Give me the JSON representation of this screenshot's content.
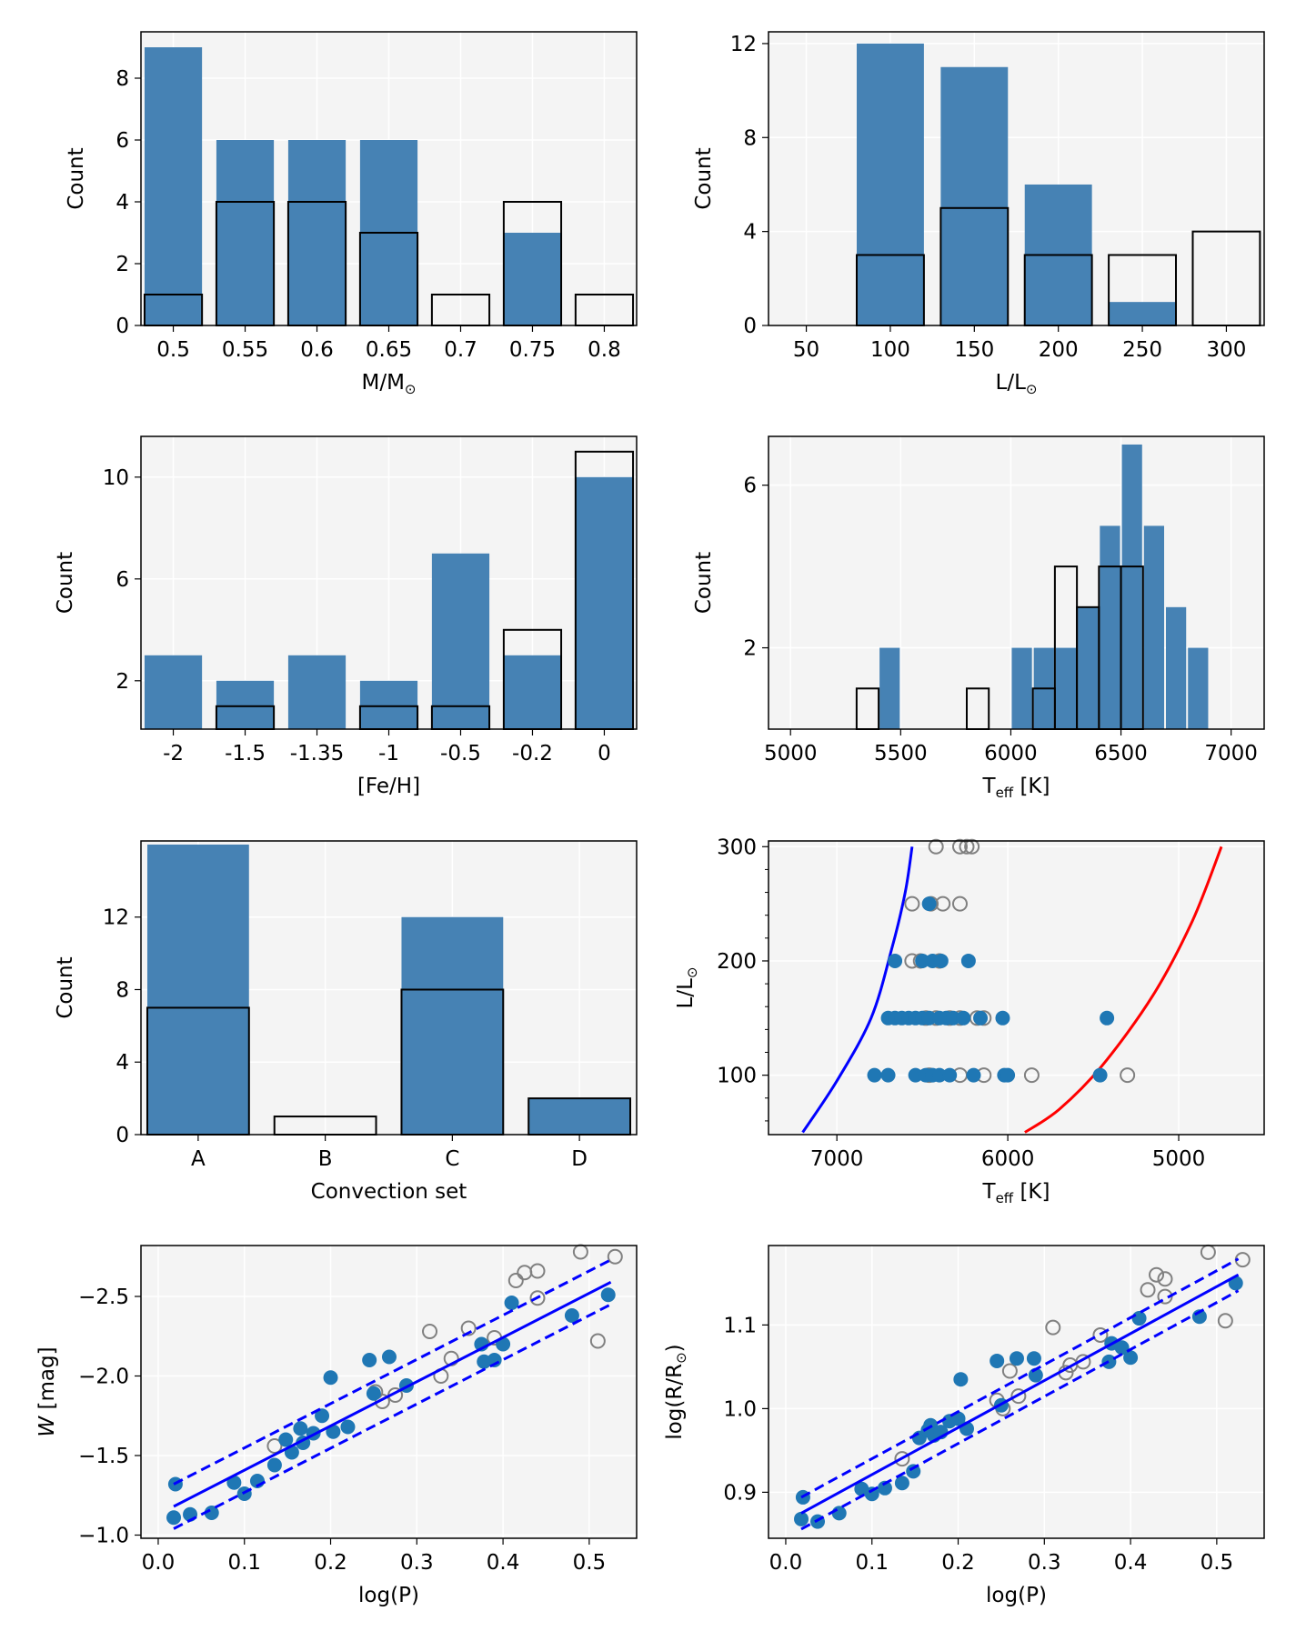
{
  "colors": {
    "bar_fill": "#4682b4",
    "dot_fill": "#1f77b4",
    "open_dot": "#808080",
    "plot_bg": "#f4f4f4",
    "blue_line": "#0000ff",
    "red_line": "#ff0000"
  },
  "chart_data": [
    {
      "id": "mass",
      "type": "bar",
      "xlabel": "M/M",
      "xlabel_sub": "⊙",
      "ylabel": "Count",
      "categories": [
        "0.5",
        "0.55",
        "0.6",
        "0.65",
        "0.7",
        "0.75",
        "0.8"
      ],
      "yticks": [
        "0",
        "2",
        "4",
        "6",
        "8"
      ],
      "ylim": [
        0,
        9.5
      ],
      "series": [
        {
          "name": "filled",
          "values": [
            9,
            6,
            6,
            6,
            0,
            3,
            0
          ]
        },
        {
          "name": "outline",
          "values": [
            1,
            4,
            4,
            3,
            1,
            4,
            1
          ]
        }
      ]
    },
    {
      "id": "lum",
      "type": "bar",
      "xlabel": "L/L",
      "xlabel_sub": "⊙",
      "ylabel": "Count",
      "categories": [
        "50",
        "100",
        "150",
        "200",
        "250",
        "300"
      ],
      "yticks": [
        "0",
        "4",
        "8",
        "12"
      ],
      "ylim": [
        0,
        12.5
      ],
      "series": [
        {
          "name": "filled",
          "values": [
            0,
            12,
            11,
            6,
            1,
            0
          ]
        },
        {
          "name": "outline",
          "values": [
            0,
            3,
            5,
            3,
            3,
            4
          ]
        }
      ]
    },
    {
      "id": "feh",
      "type": "bar",
      "xlabel": "[Fe/H]",
      "xlabel_sub": "",
      "ylabel": "Count",
      "categories": [
        "-2",
        "-1.5",
        "-1.35",
        "-1",
        "-0.5",
        "-0.2",
        "0"
      ],
      "yticks": [
        "2",
        "6",
        "10"
      ],
      "ylim": [
        0.1,
        11.6
      ],
      "series": [
        {
          "name": "filled",
          "values": [
            3,
            2,
            3,
            2,
            7,
            3,
            10
          ]
        },
        {
          "name": "outline",
          "values": [
            0,
            1,
            0,
            1,
            1,
            4,
            11
          ]
        }
      ]
    },
    {
      "id": "teff",
      "type": "bar",
      "xlabel": "T",
      "xlabel_sub": "eff",
      "xlabel_tail": " [K]",
      "ylabel": "Count",
      "xticks": [
        5000,
        5500,
        6000,
        6500,
        7000
      ],
      "xlim": [
        4900,
        7150
      ],
      "yticks": [
        2,
        6
      ],
      "ylim": [
        0,
        7.2
      ],
      "bin_width": 100,
      "series": [
        {
          "name": "filled",
          "bins": [
            [
              5400,
              2
            ],
            [
              6000,
              2
            ],
            [
              6100,
              2
            ],
            [
              6200,
              2
            ],
            [
              6300,
              3
            ],
            [
              6400,
              5
            ],
            [
              6500,
              7
            ],
            [
              6600,
              5
            ],
            [
              6700,
              3
            ],
            [
              6800,
              2
            ]
          ]
        },
        {
          "name": "outline",
          "bins": [
            [
              5300,
              1
            ],
            [
              5800,
              1
            ],
            [
              6100,
              1
            ],
            [
              6200,
              4
            ],
            [
              6300,
              3
            ],
            [
              6400,
              4
            ],
            [
              6500,
              4
            ]
          ]
        }
      ]
    },
    {
      "id": "conv",
      "type": "bar",
      "xlabel": "Convection set",
      "xlabel_sub": "",
      "ylabel": "Count",
      "categories": [
        "A",
        "B",
        "C",
        "D"
      ],
      "yticks": [
        "0",
        "4",
        "8",
        "12"
      ],
      "ylim": [
        0,
        16.2
      ],
      "series": [
        {
          "name": "filled",
          "values": [
            16,
            0,
            12,
            2
          ]
        },
        {
          "name": "outline",
          "values": [
            7,
            1,
            8,
            2
          ]
        }
      ]
    },
    {
      "id": "hrd",
      "type": "scatter",
      "xlabel": "T",
      "xlabel_sub": "eff",
      "xlabel_tail": " [K]",
      "ylabel": "L/L",
      "ylabel_sub": "⊙",
      "xticks": [
        7000,
        6000,
        5000
      ],
      "xlim": [
        7400,
        4500
      ],
      "yticks": [
        100,
        200,
        300
      ],
      "ylim": [
        48,
        305
      ],
      "filled_points": [
        [
          6780,
          100
        ],
        [
          6700,
          100
        ],
        [
          6540,
          100
        ],
        [
          6480,
          100
        ],
        [
          6440,
          100
        ],
        [
          6400,
          100
        ],
        [
          6340,
          100
        ],
        [
          6200,
          100
        ],
        [
          6020,
          100
        ],
        [
          6000,
          100
        ],
        [
          5460,
          100
        ],
        [
          6700,
          150
        ],
        [
          6660,
          150
        ],
        [
          6620,
          150
        ],
        [
          6580,
          150
        ],
        [
          6540,
          150
        ],
        [
          6500,
          150
        ],
        [
          6460,
          150
        ],
        [
          6400,
          150
        ],
        [
          6360,
          150
        ],
        [
          6320,
          150
        ],
        [
          6260,
          150
        ],
        [
          6160,
          150
        ],
        [
          6030,
          150
        ],
        [
          5420,
          150
        ],
        [
          6660,
          200
        ],
        [
          6500,
          200
        ],
        [
          6440,
          200
        ],
        [
          6390,
          200
        ],
        [
          6230,
          200
        ],
        [
          6460,
          250
        ]
      ],
      "open_points": [
        [
          6460,
          100
        ],
        [
          6280,
          100
        ],
        [
          6140,
          100
        ],
        [
          5860,
          100
        ],
        [
          5300,
          100
        ],
        [
          6480,
          150
        ],
        [
          6420,
          150
        ],
        [
          6340,
          150
        ],
        [
          6280,
          150
        ],
        [
          6180,
          150
        ],
        [
          6140,
          150
        ],
        [
          6560,
          200
        ],
        [
          6510,
          200
        ],
        [
          6400,
          200
        ],
        [
          6560,
          250
        ],
        [
          6450,
          250
        ],
        [
          6380,
          250
        ],
        [
          6280,
          250
        ],
        [
          6420,
          300
        ],
        [
          6280,
          300
        ],
        [
          6240,
          300
        ],
        [
          6210,
          300
        ]
      ],
      "blue_edge": [
        [
          7200,
          50
        ],
        [
          7000,
          95
        ],
        [
          6800,
          150
        ],
        [
          6680,
          210
        ],
        [
          6600,
          260
        ],
        [
          6560,
          300
        ]
      ],
      "red_edge": [
        [
          5900,
          50
        ],
        [
          5700,
          70
        ],
        [
          5450,
          108
        ],
        [
          5150,
          170
        ],
        [
          4920,
          235
        ],
        [
          4750,
          300
        ]
      ]
    },
    {
      "id": "plw",
      "type": "scatter",
      "xlabel": "log(P)",
      "ylabel": "W [mag]",
      "ylabel_italic": "W",
      "xticks": [
        "0.0",
        "0.1",
        "0.2",
        "0.3",
        "0.4",
        "0.5"
      ],
      "xlim": [
        -0.02,
        0.555
      ],
      "yticks": [
        "−1.0",
        "−1.5",
        "−2.0",
        "−2.5"
      ],
      "ylim": [
        -0.98,
        -2.82
      ],
      "filled_points": [
        [
          0.018,
          -1.11
        ],
        [
          0.02,
          -1.32
        ],
        [
          0.037,
          -1.13
        ],
        [
          0.062,
          -1.14
        ],
        [
          0.088,
          -1.33
        ],
        [
          0.1,
          -1.26
        ],
        [
          0.115,
          -1.34
        ],
        [
          0.135,
          -1.44
        ],
        [
          0.148,
          -1.6
        ],
        [
          0.155,
          -1.52
        ],
        [
          0.165,
          -1.67
        ],
        [
          0.168,
          -1.58
        ],
        [
          0.18,
          -1.64
        ],
        [
          0.19,
          -1.75
        ],
        [
          0.203,
          -1.65
        ],
        [
          0.2,
          -1.99
        ],
        [
          0.22,
          -1.68
        ],
        [
          0.245,
          -2.1
        ],
        [
          0.25,
          -1.89
        ],
        [
          0.268,
          -2.12
        ],
        [
          0.288,
          -1.94
        ],
        [
          0.375,
          -2.2
        ],
        [
          0.378,
          -2.09
        ],
        [
          0.39,
          -2.1
        ],
        [
          0.4,
          -2.2
        ],
        [
          0.41,
          -2.46
        ],
        [
          0.48,
          -2.38
        ],
        [
          0.522,
          -2.51
        ]
      ],
      "open_points": [
        [
          0.135,
          -1.56
        ],
        [
          0.252,
          -1.9
        ],
        [
          0.26,
          -1.84
        ],
        [
          0.275,
          -1.88
        ],
        [
          0.315,
          -2.28
        ],
        [
          0.328,
          -2.0
        ],
        [
          0.34,
          -2.11
        ],
        [
          0.36,
          -2.3
        ],
        [
          0.39,
          -2.24
        ],
        [
          0.415,
          -2.6
        ],
        [
          0.425,
          -2.65
        ],
        [
          0.44,
          -2.66
        ],
        [
          0.44,
          -2.49
        ],
        [
          0.49,
          -2.78
        ],
        [
          0.51,
          -2.22
        ],
        [
          0.53,
          -2.75
        ]
      ],
      "fit_line": [
        [
          0.018,
          -1.18
        ],
        [
          0.525,
          -2.59
        ]
      ],
      "fit_upper": [
        [
          0.018,
          -1.32
        ],
        [
          0.525,
          -2.73
        ]
      ],
      "fit_lower": [
        [
          0.018,
          -1.04
        ],
        [
          0.525,
          -2.45
        ]
      ]
    },
    {
      "id": "plr",
      "type": "scatter",
      "xlabel": "log(P)",
      "ylabel": "log(R/R",
      "ylabel_sub": "⊙",
      "ylabel_tail": ")",
      "xticks": [
        "0.0",
        "0.1",
        "0.2",
        "0.3",
        "0.4",
        "0.5"
      ],
      "xlim": [
        -0.02,
        0.555
      ],
      "yticks": [
        "0.9",
        "1.0",
        "1.1"
      ],
      "ylim": [
        0.845,
        1.195
      ],
      "filled_points": [
        [
          0.018,
          0.868
        ],
        [
          0.02,
          0.894
        ],
        [
          0.037,
          0.865
        ],
        [
          0.062,
          0.875
        ],
        [
          0.088,
          0.904
        ],
        [
          0.1,
          0.898
        ],
        [
          0.115,
          0.905
        ],
        [
          0.135,
          0.911
        ],
        [
          0.148,
          0.925
        ],
        [
          0.155,
          0.965
        ],
        [
          0.165,
          0.974
        ],
        [
          0.168,
          0.98
        ],
        [
          0.172,
          0.968
        ],
        [
          0.18,
          0.972
        ],
        [
          0.19,
          0.985
        ],
        [
          0.2,
          0.988
        ],
        [
          0.203,
          1.035
        ],
        [
          0.21,
          0.976
        ],
        [
          0.245,
          1.057
        ],
        [
          0.25,
          1.004
        ],
        [
          0.268,
          1.06
        ],
        [
          0.288,
          1.06
        ],
        [
          0.29,
          1.04
        ],
        [
          0.375,
          1.056
        ],
        [
          0.378,
          1.078
        ],
        [
          0.39,
          1.073
        ],
        [
          0.4,
          1.061
        ],
        [
          0.41,
          1.108
        ],
        [
          0.48,
          1.11
        ],
        [
          0.522,
          1.15
        ]
      ],
      "open_points": [
        [
          0.135,
          0.94
        ],
        [
          0.245,
          1.01
        ],
        [
          0.252,
          1.0
        ],
        [
          0.26,
          1.045
        ],
        [
          0.27,
          1.015
        ],
        [
          0.31,
          1.097
        ],
        [
          0.325,
          1.043
        ],
        [
          0.33,
          1.052
        ],
        [
          0.345,
          1.056
        ],
        [
          0.365,
          1.088
        ],
        [
          0.42,
          1.142
        ],
        [
          0.43,
          1.16
        ],
        [
          0.44,
          1.155
        ],
        [
          0.44,
          1.134
        ],
        [
          0.49,
          1.187
        ],
        [
          0.51,
          1.105
        ],
        [
          0.53,
          1.178
        ]
      ],
      "fit_line": [
        [
          0.018,
          0.875
        ],
        [
          0.525,
          1.16
        ]
      ],
      "fit_upper": [
        [
          0.018,
          0.894
        ],
        [
          0.525,
          1.179
        ]
      ],
      "fit_lower": [
        [
          0.018,
          0.856
        ],
        [
          0.525,
          1.141
        ]
      ]
    }
  ]
}
